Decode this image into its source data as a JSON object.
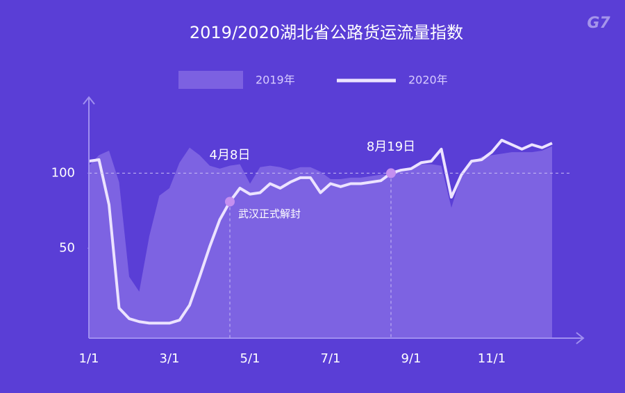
{
  "chart_data": {
    "type": "line",
    "title": "2019/2020湖北省公路货运流量指数",
    "logo": "G7",
    "categories": [
      "1/1",
      null,
      null,
      null,
      null,
      null,
      null,
      null,
      "3/1",
      null,
      null,
      null,
      null,
      null,
      null,
      null,
      "5/1",
      null,
      null,
      null,
      null,
      null,
      null,
      null,
      "7/1",
      null,
      null,
      null,
      null,
      null,
      null,
      null,
      "9/1",
      null,
      null,
      null,
      null,
      null,
      null,
      null,
      "11/1",
      null,
      null,
      null,
      null,
      null,
      null
    ],
    "series": [
      {
        "name": "2019年",
        "style": "area",
        "color": "#8a70e6",
        "values": [
          105,
          112,
          115,
          94,
          31,
          21,
          58,
          85,
          90,
          107,
          117,
          112,
          105,
          103,
          105,
          106,
          93,
          104,
          105,
          104,
          102,
          104,
          104,
          101,
          96,
          96,
          97,
          97,
          98,
          99,
          99,
          101,
          103,
          106,
          106,
          105,
          77,
          99,
          107,
          111,
          112,
          113,
          114,
          114,
          114,
          115,
          118
        ]
      },
      {
        "name": "2020年",
        "style": "line",
        "color": "#ece3ff",
        "values": [
          108,
          109,
          79,
          10,
          3,
          1,
          0,
          0,
          0,
          2,
          12,
          31,
          51,
          69,
          81,
          90,
          86,
          87,
          93,
          90,
          94,
          97,
          97,
          87,
          93,
          91,
          93,
          93,
          94,
          95,
          100,
          102,
          103,
          107,
          108,
          116,
          84,
          99,
          108,
          109,
          114,
          122,
          119,
          116,
          119,
          117,
          120
        ]
      }
    ],
    "annotations": [
      {
        "label": "4月8日",
        "note": "武汉正式解封"
      },
      {
        "label": "8月19日"
      }
    ],
    "ylim": [
      -10,
      150
    ],
    "yticks": [
      50,
      100
    ],
    "hline": 100
  }
}
